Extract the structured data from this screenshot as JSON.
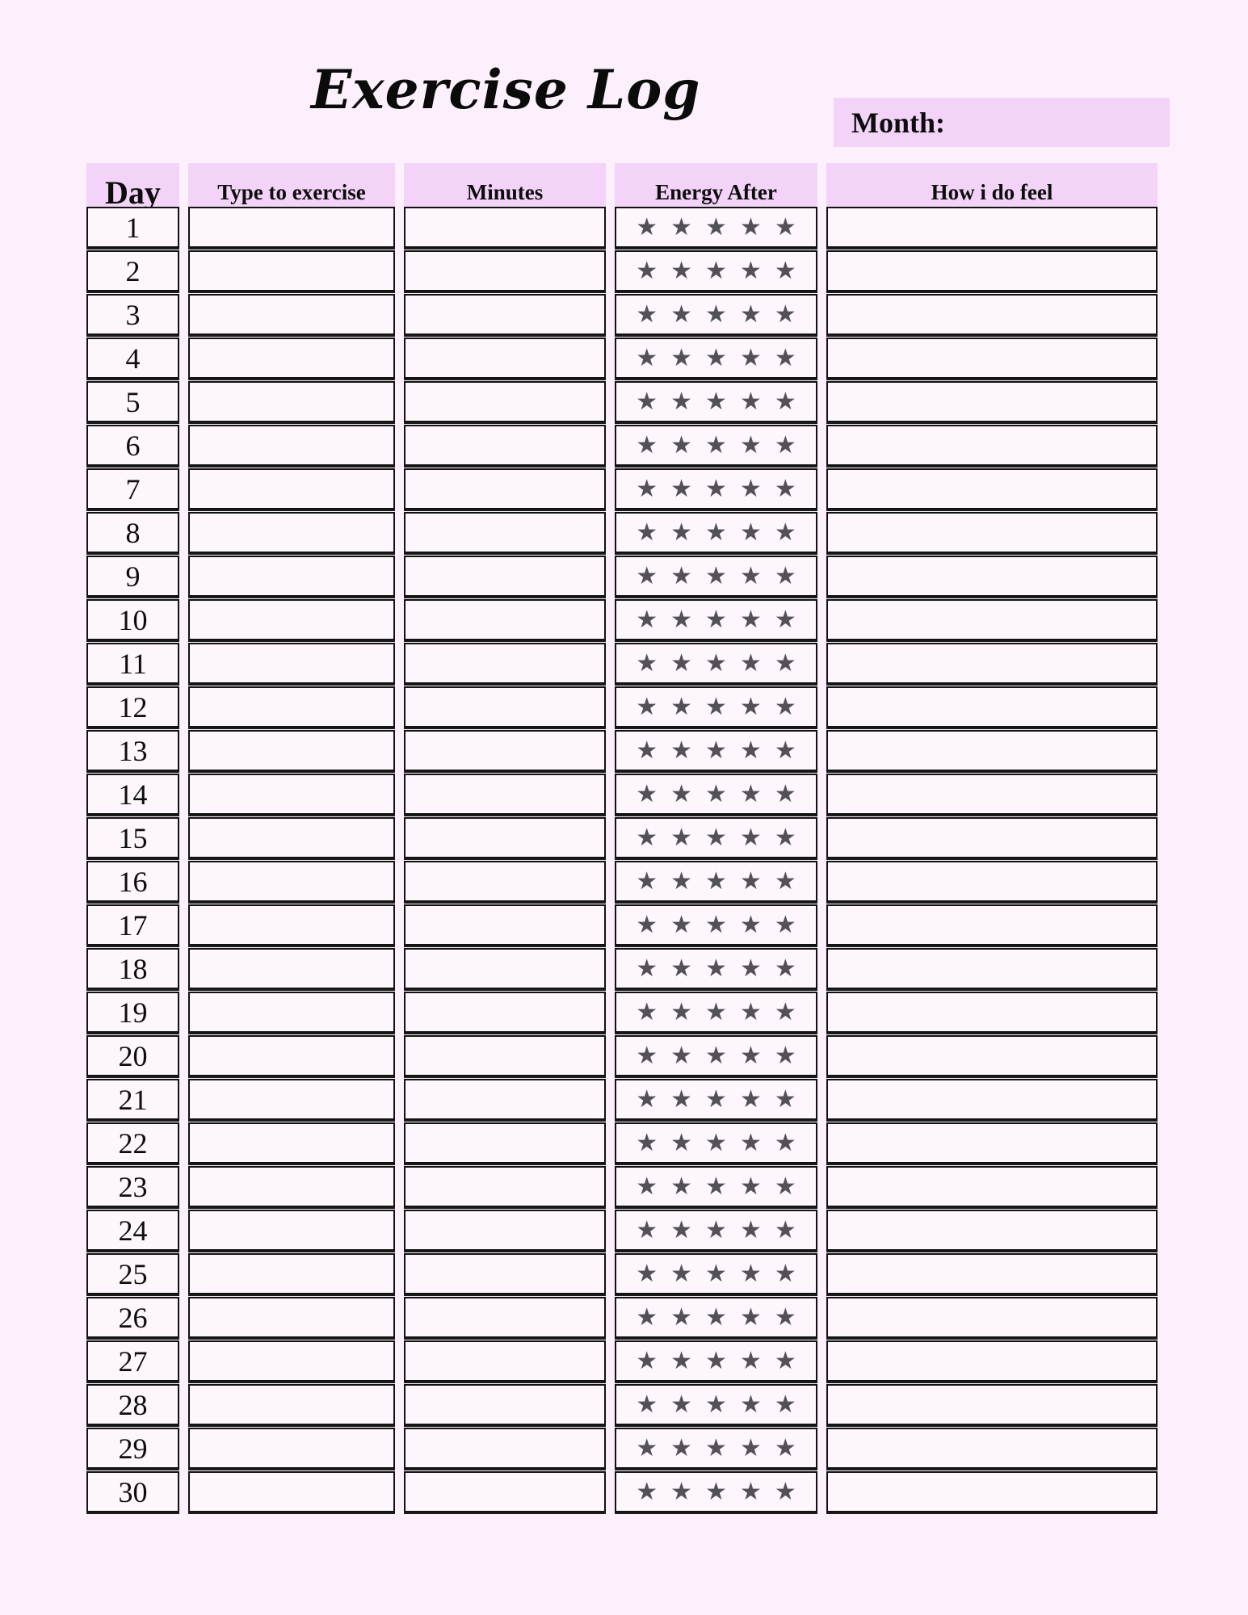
{
  "page": {
    "title": "Exercise Log",
    "month_label": "Month:",
    "month_value": "",
    "bg_color": "#fbf0fb",
    "accent_color": "#f3d3f8",
    "cell_bg_color": "#fdf6fd",
    "border_color": "#121212",
    "star_color": "#535058",
    "star_icon": "★"
  },
  "table": {
    "headers": [
      {
        "key": "day",
        "label": "Day"
      },
      {
        "key": "type",
        "label": "Type to exercise"
      },
      {
        "key": "minutes",
        "label": "Minutes"
      },
      {
        "key": "energy",
        "label": "Energy After"
      },
      {
        "key": "feel",
        "label": "How i do feel"
      }
    ],
    "rows": [
      {
        "day": "1",
        "type": "",
        "minutes": "",
        "energy_stars": 5,
        "feel": ""
      },
      {
        "day": "2",
        "type": "",
        "minutes": "",
        "energy_stars": 5,
        "feel": ""
      },
      {
        "day": "3",
        "type": "",
        "minutes": "",
        "energy_stars": 5,
        "feel": ""
      },
      {
        "day": "4",
        "type": "",
        "minutes": "",
        "energy_stars": 5,
        "feel": ""
      },
      {
        "day": "5",
        "type": "",
        "minutes": "",
        "energy_stars": 5,
        "feel": ""
      },
      {
        "day": "6",
        "type": "",
        "minutes": "",
        "energy_stars": 5,
        "feel": ""
      },
      {
        "day": "7",
        "type": "",
        "minutes": "",
        "energy_stars": 5,
        "feel": ""
      },
      {
        "day": "8",
        "type": "",
        "minutes": "",
        "energy_stars": 5,
        "feel": ""
      },
      {
        "day": "9",
        "type": "",
        "minutes": "",
        "energy_stars": 5,
        "feel": ""
      },
      {
        "day": "10",
        "type": "",
        "minutes": "",
        "energy_stars": 5,
        "feel": ""
      },
      {
        "day": "11",
        "type": "",
        "minutes": "",
        "energy_stars": 5,
        "feel": ""
      },
      {
        "day": "12",
        "type": "",
        "minutes": "",
        "energy_stars": 5,
        "feel": ""
      },
      {
        "day": "13",
        "type": "",
        "minutes": "",
        "energy_stars": 5,
        "feel": ""
      },
      {
        "day": "14",
        "type": "",
        "minutes": "",
        "energy_stars": 5,
        "feel": ""
      },
      {
        "day": "15",
        "type": "",
        "minutes": "",
        "energy_stars": 5,
        "feel": ""
      },
      {
        "day": "16",
        "type": "",
        "minutes": "",
        "energy_stars": 5,
        "feel": ""
      },
      {
        "day": "17",
        "type": "",
        "minutes": "",
        "energy_stars": 5,
        "feel": ""
      },
      {
        "day": "18",
        "type": "",
        "minutes": "",
        "energy_stars": 5,
        "feel": ""
      },
      {
        "day": "19",
        "type": "",
        "minutes": "",
        "energy_stars": 5,
        "feel": ""
      },
      {
        "day": "20",
        "type": "",
        "minutes": "",
        "energy_stars": 5,
        "feel": ""
      },
      {
        "day": "21",
        "type": "",
        "minutes": "",
        "energy_stars": 5,
        "feel": ""
      },
      {
        "day": "22",
        "type": "",
        "minutes": "",
        "energy_stars": 5,
        "feel": ""
      },
      {
        "day": "23",
        "type": "",
        "minutes": "",
        "energy_stars": 5,
        "feel": ""
      },
      {
        "day": "24",
        "type": "",
        "minutes": "",
        "energy_stars": 5,
        "feel": ""
      },
      {
        "day": "25",
        "type": "",
        "minutes": "",
        "energy_stars": 5,
        "feel": ""
      },
      {
        "day": "26",
        "type": "",
        "minutes": "",
        "energy_stars": 5,
        "feel": ""
      },
      {
        "day": "27",
        "type": "",
        "minutes": "",
        "energy_stars": 5,
        "feel": ""
      },
      {
        "day": "28",
        "type": "",
        "minutes": "",
        "energy_stars": 5,
        "feel": ""
      },
      {
        "day": "29",
        "type": "",
        "minutes": "",
        "energy_stars": 5,
        "feel": ""
      },
      {
        "day": "30",
        "type": "",
        "minutes": "",
        "energy_stars": 5,
        "feel": ""
      }
    ]
  }
}
